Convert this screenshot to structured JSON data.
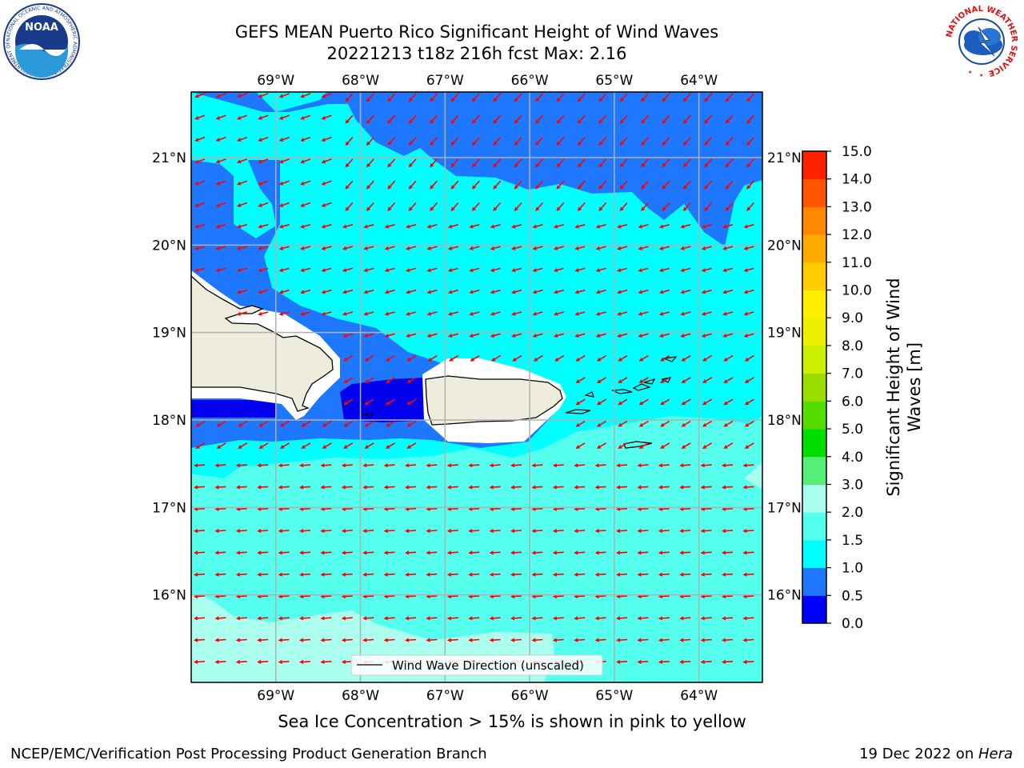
{
  "header": {
    "title_line1": "GEFS MEAN Puerto Rico Significant Height of Wind Waves",
    "title_line2": "20221213 t18z 216h fcst   Max: 2.16",
    "noaa_logo_text": "NOAA",
    "noaa_ring_text": "NATIONAL OCEANIC AND ATMOSPHERIC ADMINISTRATION · U.S. DEPARTMENT OF COMMERCE",
    "nws_ring_text": "NATIONAL WEATHER SERVICE"
  },
  "note": "Sea Ice Concentration > 15% is shown in pink to yellow",
  "footer": {
    "left": "NCEP/EMC/Verification Post Processing Product Generation Branch",
    "right_prefix": "19 Dec 2022 on ",
    "right_host": "Hera"
  },
  "chart_data": {
    "type": "heatmap",
    "title": "GEFS MEAN Puerto Rico Significant Height of Wind Waves",
    "subtitle": "20221213 t18z 216h fcst   Max: 2.16",
    "max_value": 2.16,
    "lon_ticks": [
      {
        "value": -69,
        "label": "69°W"
      },
      {
        "value": -68,
        "label": "68°W"
      },
      {
        "value": -67,
        "label": "67°W"
      },
      {
        "value": -66,
        "label": "66°W"
      },
      {
        "value": -65,
        "label": "65°W"
      },
      {
        "value": -64,
        "label": "64°W"
      }
    ],
    "lat_ticks": [
      {
        "value": 21,
        "label": "21°N"
      },
      {
        "value": 20,
        "label": "20°N"
      },
      {
        "value": 19,
        "label": "19°N"
      },
      {
        "value": 18,
        "label": "18°N"
      },
      {
        "value": 17,
        "label": "17°N"
      },
      {
        "value": 16,
        "label": "16°N"
      }
    ],
    "xlim": [
      -70,
      -63.25
    ],
    "ylim": [
      15,
      21.75
    ],
    "grid": true,
    "legend": {
      "label": "Wind Wave Direction (unscaled)",
      "placement": "bottom-center"
    },
    "colorbar": {
      "label": "Significant Height of Wind Waves [m]",
      "tick_labels": [
        "0.0",
        "0.5",
        "1.0",
        "1.5",
        "2.0",
        "3.0",
        "4.0",
        "5.0",
        "6.0",
        "7.0",
        "8.0",
        "9.0",
        "10.0",
        "11.0",
        "12.0",
        "13.0",
        "14.0",
        "15.0"
      ],
      "colors": [
        "#0000ff",
        "#1e78ff",
        "#00ffff",
        "#55ffee",
        "#aaffee",
        "#55ee77",
        "#00dd00",
        "#55dd00",
        "#99dd00",
        "#ccee00",
        "#eeee00",
        "#ffee00",
        "#ffcc00",
        "#ffaa00",
        "#ff8800",
        "#ff5500",
        "#ff2200"
      ]
    },
    "arrow_color": "#ff0000",
    "land_color": "#eeecdc"
  }
}
